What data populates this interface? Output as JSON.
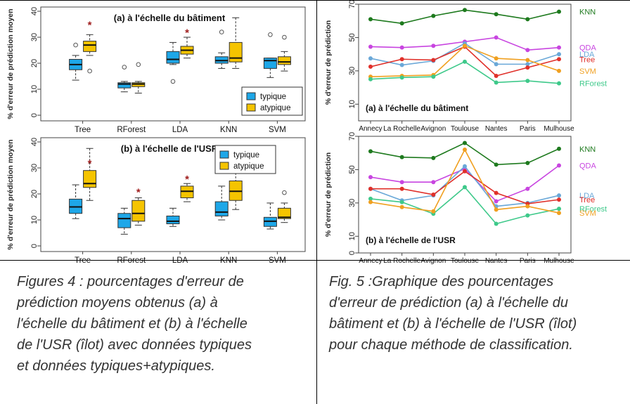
{
  "chart_data": [
    {
      "type": "boxplot",
      "panel": "fig4a",
      "title": "(a) à l'échelle du bâtiment",
      "ylabel": "% d'erreur de prédiction moyen",
      "ylim": [
        0,
        40
      ],
      "yticks": [
        "0",
        "10",
        "20",
        "30",
        "40"
      ],
      "categories": [
        "Tree",
        "RForest",
        "LDA",
        "KNN",
        "SVM"
      ],
      "legend": [
        "typique",
        "atypique"
      ],
      "series": [
        {
          "name": "typique",
          "color": "#1ea7e8",
          "boxes": [
            {
              "min": 13.5,
              "q1": 17.5,
              "median": 19.5,
              "q3": 21.5,
              "max": 23,
              "outliers": [
                27
              ]
            },
            {
              "min": 9,
              "q1": 10.5,
              "median": 12,
              "q3": 12.5,
              "max": 13,
              "outliers": [
                18.5
              ]
            },
            {
              "min": 19.5,
              "q1": 20,
              "median": 21.5,
              "q3": 24.5,
              "max": 28,
              "outliers": [
                13
              ]
            },
            {
              "min": 18,
              "q1": 20,
              "median": 21,
              "q3": 22.5,
              "max": 24,
              "outliers": [
                32
              ]
            },
            {
              "min": 14.5,
              "q1": 18,
              "median": 21,
              "q3": 22,
              "max": 22,
              "outliers": [
                31
              ]
            }
          ]
        },
        {
          "name": "atypique",
          "color": "#f5c400",
          "boxes": [
            {
              "min": 23,
              "q1": 24.5,
              "median": 27,
              "q3": 28.5,
              "max": 31,
              "outliers": [
                17
              ],
              "mean": 35
            },
            {
              "min": 8.5,
              "q1": 11,
              "median": 12,
              "q3": 12.5,
              "max": 13,
              "outliers": [
                19.5
              ]
            },
            {
              "min": 22,
              "q1": 23.5,
              "median": 25,
              "q3": 26.5,
              "max": 30,
              "outliers": [],
              "mean": 32
            },
            {
              "min": 18,
              "q1": 20.5,
              "median": 22,
              "q3": 28,
              "max": 37.5,
              "outliers": []
            },
            {
              "min": 17,
              "q1": 19.5,
              "median": 20.5,
              "q3": 22.5,
              "max": 24.5,
              "outliers": [
                30
              ]
            }
          ]
        }
      ]
    },
    {
      "type": "boxplot",
      "panel": "fig4b",
      "title": "(b) à l'échelle de l'USR",
      "ylabel": "% d'erreur de prédiction moyen",
      "ylim": [
        0,
        40
      ],
      "yticks": [
        "0",
        "10",
        "20",
        "30",
        "40"
      ],
      "categories": [
        "Tree",
        "RForest",
        "LDA",
        "KNN",
        "SVM"
      ],
      "legend": [
        "typique",
        "atypique"
      ],
      "series": [
        {
          "name": "typique",
          "color": "#1ea7e8",
          "boxes": [
            {
              "min": 10.5,
              "q1": 12.5,
              "median": 15,
              "q3": 18,
              "max": 23.5,
              "outliers": []
            },
            {
              "min": 4.5,
              "q1": 7,
              "median": 10.5,
              "q3": 12.5,
              "max": 14.5,
              "outliers": []
            },
            {
              "min": 7.5,
              "q1": 8.5,
              "median": 9.5,
              "q3": 11.5,
              "max": 14.5,
              "outliers": []
            },
            {
              "min": 10,
              "q1": 11.5,
              "median": 13,
              "q3": 17,
              "max": 23,
              "outliers": []
            },
            {
              "min": 6.5,
              "q1": 7.5,
              "median": 9.5,
              "q3": 11,
              "max": 16.5,
              "outliers": []
            }
          ]
        },
        {
          "name": "atypique",
          "color": "#f5c400",
          "boxes": [
            {
              "min": 17.5,
              "q1": 22.5,
              "median": 24,
              "q3": 29,
              "max": 37.5,
              "outliers": [],
              "mean": 32
            },
            {
              "min": 8,
              "q1": 9.5,
              "median": 12.5,
              "q3": 17.5,
              "max": 18.5,
              "outliers": [],
              "mean": 21
            },
            {
              "min": 17,
              "q1": 18.5,
              "median": 21,
              "q3": 23,
              "max": 24,
              "outliers": [],
              "mean": 26
            },
            {
              "min": 14,
              "q1": 17.5,
              "median": 21,
              "q3": 25,
              "max": 29.5,
              "outliers": [],
              "mean": 31
            },
            {
              "min": 9,
              "q1": 10.5,
              "median": 11,
              "q3": 14.5,
              "max": 16.5,
              "outliers": [
                20.5
              ]
            }
          ]
        }
      ]
    },
    {
      "type": "line",
      "panel": "fig5a",
      "title": "(a) à l'échelle du bâtiment",
      "ylabel": "% d'erreur de prédiction",
      "ylim": [
        0,
        70
      ],
      "yticks": [
        "10",
        "30",
        "50",
        "70"
      ],
      "x": [
        "Annecy",
        "La Rochelle",
        "Avignon",
        "Toulouse",
        "Nantes",
        "Paris",
        "Mulhouse"
      ],
      "series": [
        {
          "name": "KNN",
          "color": "#1e7a1e",
          "values": [
            61,
            58.5,
            63,
            66.5,
            64,
            61,
            65.5
          ]
        },
        {
          "name": "QDA",
          "color": "#c845e0",
          "values": [
            44.5,
            44,
            45,
            47.5,
            50,
            42.5,
            44
          ]
        },
        {
          "name": "LDA",
          "color": "#6aa8d8",
          "values": [
            37.5,
            33.5,
            36,
            46.5,
            34,
            34,
            40
          ]
        },
        {
          "name": "Tree",
          "color": "#e0302a",
          "values": [
            32.5,
            37,
            36.5,
            44.5,
            27,
            32,
            37
          ]
        },
        {
          "name": "SVM",
          "color": "#f0a020",
          "values": [
            26.5,
            27,
            27.5,
            45,
            37.5,
            36.5,
            30
          ]
        },
        {
          "name": "RForest",
          "color": "#3ec98a",
          "values": [
            25,
            26,
            26.5,
            35.5,
            23,
            24,
            22.5
          ]
        }
      ]
    },
    {
      "type": "line",
      "panel": "fig5b",
      "title": "(b) à l'échelle de l'USR",
      "ylabel": "% d'erreur de prédiction",
      "ylim": [
        0,
        70
      ],
      "yticks": [
        "0",
        "10",
        "30",
        "50",
        "70"
      ],
      "x": [
        "Annecy",
        "La Rochelle",
        "Avignon",
        "Toulouse",
        "Nantes",
        "Paris",
        "Mulhouse"
      ],
      "series": [
        {
          "name": "KNN",
          "color": "#1e7a1e",
          "values": [
            61,
            57.5,
            57,
            66,
            53,
            54,
            62.5
          ]
        },
        {
          "name": "QDA",
          "color": "#c845e0",
          "values": [
            45.5,
            42.5,
            42.5,
            50.5,
            31,
            38.5,
            52.5
          ]
        },
        {
          "name": "LDA",
          "color": "#6aa8d8",
          "values": [
            38.5,
            31.5,
            34.5,
            52,
            28,
            30,
            34.5
          ]
        },
        {
          "name": "Tree",
          "color": "#e0302a",
          "values": [
            38.5,
            38.5,
            35,
            49,
            36,
            29.5,
            32
          ]
        },
        {
          "name": "RForest",
          "color": "#3ec98a",
          "values": [
            32.5,
            30.5,
            23.5,
            39.5,
            17.5,
            22.5,
            26.5
          ]
        },
        {
          "name": "SVM",
          "color": "#f0a020",
          "values": [
            30.5,
            27.5,
            25,
            62,
            26,
            28,
            24
          ]
        }
      ]
    }
  ],
  "captions": {
    "fig4": [
      "Figures 4 : pourcentages d'erreur de",
      "prédiction moyens obtenus (a) à",
      "l'échelle du bâtiment et (b) à l'échelle",
      "de l'USR (îlot) avec données typiques",
      "et données typiques+atypiques."
    ],
    "fig5": [
      "Fig. 5 :Graphique des pourcentages",
      "d'erreur de prédiction (a) à l'échelle du",
      "bâtiment et (b) à l'échelle de l'USR (îlot)",
      "pour chaque méthode de classification."
    ]
  }
}
